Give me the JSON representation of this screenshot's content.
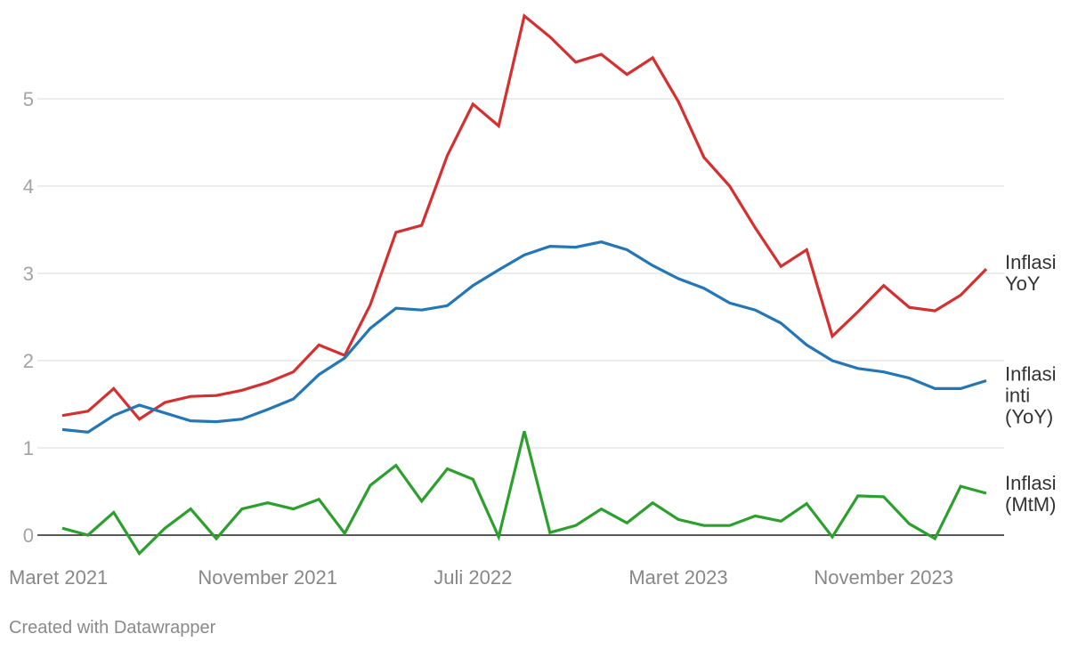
{
  "chart_data": {
    "type": "line",
    "title": "",
    "xlabel": "",
    "ylabel": "",
    "ylim": [
      -0.3,
      6.0
    ],
    "yticks": [
      0,
      1,
      2,
      3,
      4,
      5
    ],
    "grid": true,
    "x": [
      "2021-03",
      "2021-04",
      "2021-05",
      "2021-06",
      "2021-07",
      "2021-08",
      "2021-09",
      "2021-10",
      "2021-11",
      "2021-12",
      "2022-01",
      "2022-02",
      "2022-03",
      "2022-04",
      "2022-05",
      "2022-06",
      "2022-07",
      "2022-08",
      "2022-09",
      "2022-10",
      "2022-11",
      "2022-12",
      "2023-01",
      "2023-02",
      "2023-03",
      "2023-04",
      "2023-05",
      "2023-06",
      "2023-07",
      "2023-08",
      "2023-09",
      "2023-10",
      "2023-11",
      "2023-12",
      "2024-01",
      "2024-02",
      "2024-03"
    ],
    "x_tick_labels": [
      {
        "x": "2021-03",
        "label": "Maret 2021"
      },
      {
        "x": "2021-11",
        "label": "November 2021"
      },
      {
        "x": "2022-07",
        "label": "Juli 2022"
      },
      {
        "x": "2023-03",
        "label": "Maret 2023"
      },
      {
        "x": "2023-11",
        "label": "November 2023"
      }
    ],
    "series": [
      {
        "name": "Inflasi YoY",
        "label_lines": [
          "Inflasi",
          "YoY"
        ],
        "color": "#d62f2f",
        "values": [
          1.37,
          1.42,
          1.68,
          1.33,
          1.52,
          1.59,
          1.6,
          1.66,
          1.75,
          1.87,
          2.18,
          2.06,
          2.64,
          3.47,
          3.55,
          4.35,
          4.94,
          4.69,
          5.95,
          5.71,
          5.42,
          5.51,
          5.28,
          5.47,
          4.97,
          4.33,
          4.0,
          3.52,
          3.08,
          3.27,
          2.28,
          2.56,
          2.86,
          2.61,
          2.57,
          2.75,
          3.05
        ]
      },
      {
        "name": "Inflasi inti (YoY)",
        "label_lines": [
          "Inflasi",
          "inti",
          "(YoY)"
        ],
        "color": "#2377b8",
        "values": [
          1.21,
          1.18,
          1.37,
          1.49,
          1.4,
          1.31,
          1.3,
          1.33,
          1.44,
          1.56,
          1.84,
          2.03,
          2.37,
          2.6,
          2.58,
          2.63,
          2.86,
          3.04,
          3.21,
          3.31,
          3.3,
          3.36,
          3.27,
          3.09,
          2.94,
          2.83,
          2.66,
          2.58,
          2.43,
          2.18,
          2.0,
          1.91,
          1.87,
          1.8,
          1.68,
          1.68,
          1.77
        ]
      },
      {
        "name": "Inflasi (MtM)",
        "label_lines": [
          "Inflasi",
          "(MtM)"
        ],
        "color": "#2ca02c",
        "values": [
          0.08,
          0.0,
          0.26,
          -0.21,
          0.08,
          0.3,
          -0.04,
          0.3,
          0.37,
          0.3,
          0.41,
          0.02,
          0.57,
          0.8,
          0.39,
          0.76,
          0.64,
          -0.02,
          1.19,
          0.03,
          0.11,
          0.3,
          0.14,
          0.37,
          0.18,
          0.11,
          0.11,
          0.22,
          0.16,
          0.36,
          -0.02,
          0.45,
          0.44,
          0.13,
          -0.04,
          0.56,
          0.48
        ]
      }
    ]
  },
  "footer": {
    "credit": "Created with Datawrapper"
  }
}
